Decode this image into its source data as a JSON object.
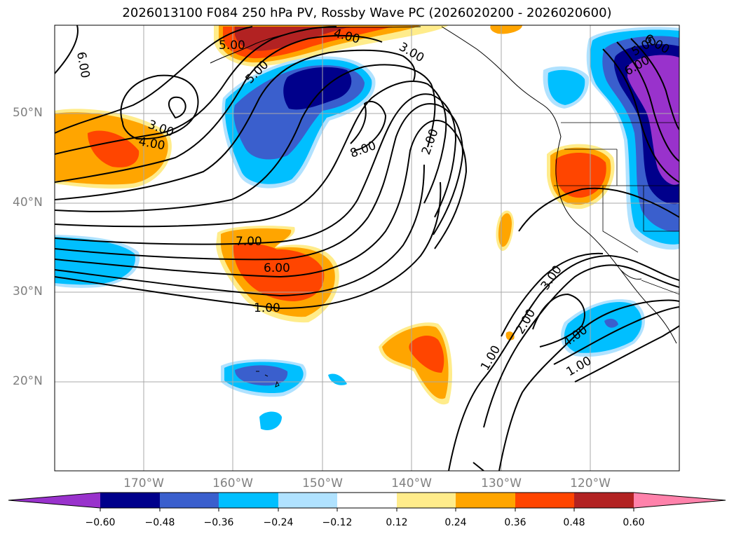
{
  "title": "2026013100 F084 250 hPa PV, Rossby Wave PC (2026020200 - 2026020600)",
  "lat_labels": [
    "50°N",
    "40°N",
    "30°N",
    "20°N"
  ],
  "lon_labels": [
    "170°W",
    "160°W",
    "150°W",
    "140°W",
    "130°W",
    "120°W"
  ],
  "colorbar": {
    "ticks": [
      "−0.60",
      "−0.48",
      "−0.36",
      "−0.24",
      "−0.12",
      "0.12",
      "0.24",
      "0.36",
      "0.48",
      "0.60"
    ],
    "colors": [
      "#9932cc",
      "#00008b",
      "#3a5fcd",
      "#00bfff",
      "#b0e2ff",
      "#ffffff",
      "#ffec8b",
      "#ffa500",
      "#ff4500",
      "#b22222",
      "#ff82ab"
    ]
  },
  "contour_labels": [
    "6.00",
    "5.00",
    "4.00",
    "3.00",
    "5.00",
    "3.00",
    "4.00",
    "8.00",
    "2.00",
    "7.00",
    "6.00",
    "1.00",
    "6.00",
    "5.00",
    "6.00",
    "3.00",
    "2.00",
    "1.00",
    "4.00",
    "1.00"
  ],
  "shading_colors": {
    "light_yellow": "#ffec8b",
    "orange": "#ffa500",
    "red_orange": "#ff4500",
    "dark_red": "#b22222",
    "light_blue": "#b0e2ff",
    "sky_blue": "#00bfff",
    "royal_blue": "#3a5fcd",
    "navy": "#00008b",
    "purple": "#9932cc"
  }
}
